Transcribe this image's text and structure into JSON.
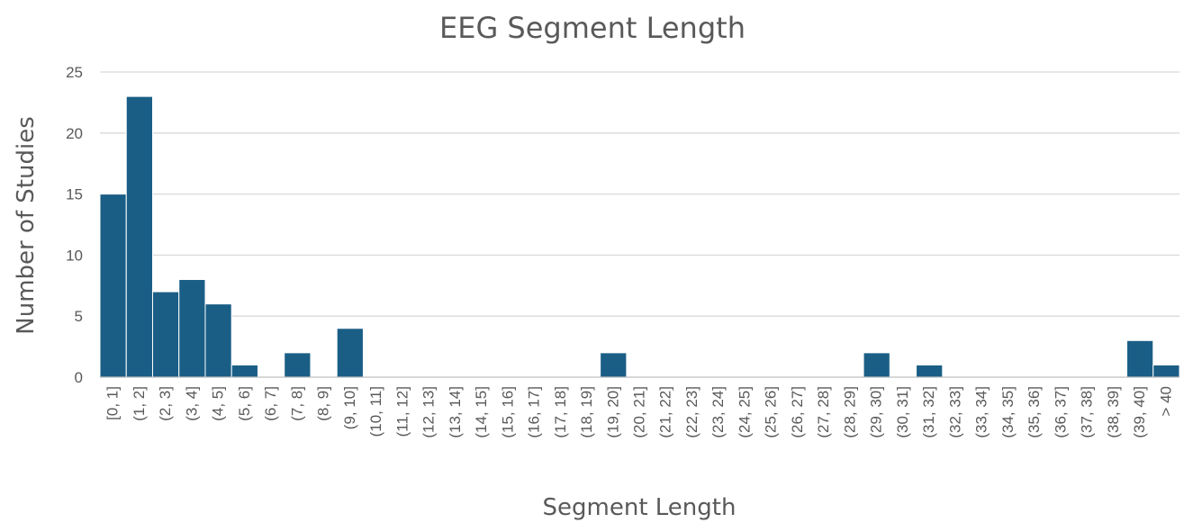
{
  "chart_data": {
    "type": "bar",
    "title": "EEG Segment Length",
    "xlabel": "Segment Length",
    "ylabel": "Number of Studies",
    "ylim": [
      0,
      25
    ],
    "yticks": [
      0,
      5,
      10,
      15,
      20,
      25
    ],
    "grid": true,
    "legend": "none",
    "bar_color": "#1a5e86",
    "categories": [
      "[0, 1]",
      "(1, 2]",
      "(2, 3]",
      "(3, 4]",
      "(4, 5]",
      "(5, 6]",
      "(6, 7]",
      "(7, 8]",
      "(8, 9]",
      "(9, 10]",
      "(10, 11]",
      "(11, 12]",
      "(12, 13]",
      "(13, 14]",
      "(14, 15]",
      "(15, 16]",
      "(16, 17]",
      "(17, 18]",
      "(18, 19]",
      "(19, 20]",
      "(20, 21]",
      "(21, 22]",
      "(22, 23]",
      "(23, 24]",
      "(24, 25]",
      "(25, 26]",
      "(26, 27]",
      "(27, 28]",
      "(28, 29]",
      "(29, 30]",
      "(30, 31]",
      "(31, 32]",
      "(32, 33]",
      "(33, 34]",
      "(34, 35]",
      "(35, 36]",
      "(36, 37]",
      "(37, 38]",
      "(38, 39]",
      "(39, 40]",
      "> 40"
    ],
    "values": [
      15,
      23,
      7,
      8,
      6,
      1,
      0,
      2,
      0,
      4,
      0,
      0,
      0,
      0,
      0,
      0,
      0,
      0,
      0,
      2,
      0,
      0,
      0,
      0,
      0,
      0,
      0,
      0,
      0,
      2,
      0,
      1,
      0,
      0,
      0,
      0,
      0,
      0,
      0,
      3,
      1
    ]
  }
}
